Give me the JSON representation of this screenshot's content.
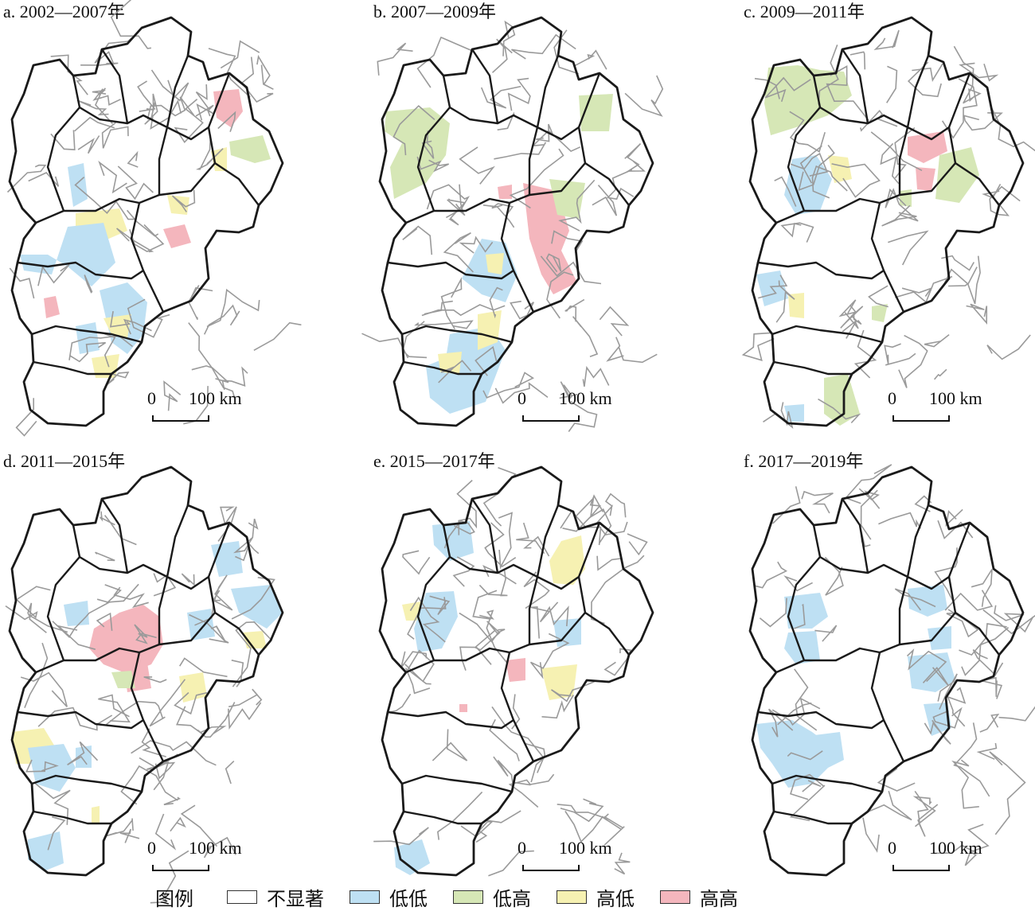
{
  "colors": {
    "not_significant": "#ffffff",
    "low_low": "#bee0f3",
    "low_high": "#d6e7b6",
    "high_low": "#f6f1b2",
    "high_high": "#f4b6bd",
    "boundary_bold": "#1a1a1a",
    "boundary_thin": "#9a9a9a"
  },
  "panels": [
    {
      "title": "a. 2002—2007年",
      "scale_zero": "0",
      "scale_dist": "100 km",
      "highlights": [
        {
          "class": "high_high",
          "area": "northeast"
        },
        {
          "class": "low_high",
          "area": "northeast"
        },
        {
          "class": "low_low",
          "area": "central-west"
        },
        {
          "class": "high_low",
          "area": "central"
        },
        {
          "class": "low_low",
          "area": "south-central"
        }
      ]
    },
    {
      "title": "b. 2007—2009年",
      "scale_zero": "0",
      "scale_dist": "100 km",
      "highlights": [
        {
          "class": "low_high",
          "area": "northwest"
        },
        {
          "class": "high_high",
          "area": "center-east"
        },
        {
          "class": "low_low",
          "area": "south"
        },
        {
          "class": "high_low",
          "area": "south-central"
        }
      ]
    },
    {
      "title": "c. 2009—2011年",
      "scale_zero": "0",
      "scale_dist": "100 km",
      "highlights": [
        {
          "class": "low_high",
          "area": "northwest"
        },
        {
          "class": "low_low",
          "area": "west"
        },
        {
          "class": "high_high",
          "area": "center"
        },
        {
          "class": "low_high",
          "area": "south"
        }
      ]
    },
    {
      "title": "d. 2011—2015年",
      "scale_zero": "0",
      "scale_dist": "100 km",
      "highlights": [
        {
          "class": "high_high",
          "area": "center"
        },
        {
          "class": "low_low",
          "area": "northeast"
        },
        {
          "class": "high_low",
          "area": "southwest"
        },
        {
          "class": "low_low",
          "area": "south"
        }
      ]
    },
    {
      "title": "e. 2015—2017年",
      "scale_zero": "0",
      "scale_dist": "100 km",
      "highlights": [
        {
          "class": "low_low",
          "area": "north-west"
        },
        {
          "class": "high_low",
          "area": "north-center"
        },
        {
          "class": "high_high",
          "area": "center"
        },
        {
          "class": "low_low",
          "area": "south"
        }
      ]
    },
    {
      "title": "f. 2017—2019年",
      "scale_zero": "0",
      "scale_dist": "100 km",
      "highlights": [
        {
          "class": "low_low",
          "area": "northwest"
        },
        {
          "class": "low_low",
          "area": "center"
        },
        {
          "class": "low_low",
          "area": "southwest"
        }
      ]
    }
  ],
  "legend": {
    "title": "图例",
    "items": [
      {
        "key": "not_significant",
        "label": "不显著"
      },
      {
        "key": "low_low",
        "label": "低低"
      },
      {
        "key": "low_high",
        "label": "低高"
      },
      {
        "key": "high_low",
        "label": "高低"
      },
      {
        "key": "high_high",
        "label": "高高"
      }
    ]
  }
}
